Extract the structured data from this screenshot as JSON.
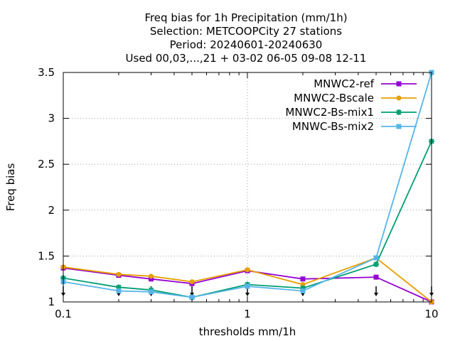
{
  "chart_data": {
    "type": "line",
    "title_lines": [
      "Freq bias  for 1h Precipitation (mm/1h)",
      "Selection: METCOOPCity      27 stations",
      "Period: 20240601-20240630",
      "Used 00,03,...,21 + 03-02 06-05 09-08 12-11"
    ],
    "xlabel": "thresholds mm/1h",
    "ylabel": "Freq bias",
    "xscale": "log",
    "xlim": [
      0.1,
      10
    ],
    "ylim": [
      1,
      3.5
    ],
    "x_ticks": [
      {
        "value": 0.1,
        "label": "0.1"
      },
      {
        "value": 1,
        "label": "1"
      },
      {
        "value": 10,
        "label": "10"
      }
    ],
    "y_ticks": [
      {
        "value": 1,
        "label": "1"
      },
      {
        "value": 1.5,
        "label": "1.5"
      },
      {
        "value": 2,
        "label": "2"
      },
      {
        "value": 2.5,
        "label": "2.5"
      },
      {
        "value": 3,
        "label": "3"
      },
      {
        "value": 3.5,
        "label": "3.5"
      }
    ],
    "grid": true,
    "legend_position": "top-right",
    "x": [
      0.1,
      0.2,
      0.3,
      0.5,
      1,
      2,
      5,
      10
    ],
    "series": [
      {
        "name": "MNWC2-ref",
        "color": "#9400d3",
        "marker": "square",
        "values": [
          1.37,
          1.29,
          1.25,
          1.2,
          1.34,
          1.25,
          1.27,
          1.0
        ]
      },
      {
        "name": "MNWC2-Bscale",
        "color": "#e69f00",
        "marker": "circle",
        "values": [
          1.38,
          1.3,
          1.28,
          1.22,
          1.35,
          1.19,
          1.48,
          1.0
        ]
      },
      {
        "name": "MNWC2-Bs-mix1",
        "color": "#009e73",
        "marker": "star",
        "values": [
          1.26,
          1.16,
          1.13,
          1.05,
          1.19,
          1.15,
          1.41,
          2.75
        ]
      },
      {
        "name": "MNWC-Bs-mix2",
        "color": "#56b4e9",
        "marker": "square",
        "values": [
          1.22,
          1.12,
          1.11,
          1.05,
          1.17,
          1.12,
          1.48,
          3.5
        ]
      }
    ]
  }
}
